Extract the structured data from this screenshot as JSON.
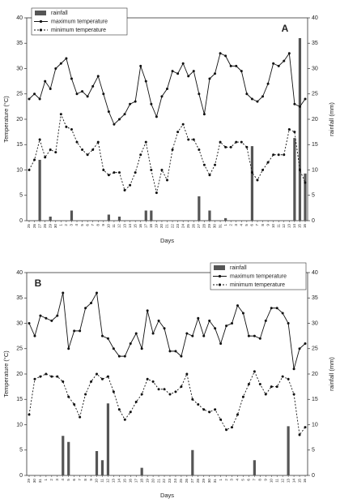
{
  "chart_data": [
    {
      "type": "combo",
      "label": "A",
      "legend": "upper left",
      "xlabel": "Days",
      "ylabel": "Temperature (°C)",
      "y2label": "rainfall (mm)",
      "categories": [
        "25",
        "26",
        "27",
        "28",
        "29",
        "30",
        "1",
        "2",
        "3",
        "4",
        "5",
        "6",
        "7",
        "8",
        "9",
        "10",
        "11",
        "12",
        "13",
        "14",
        "15",
        "16",
        "17",
        "18",
        "19",
        "20",
        "21",
        "22",
        "23",
        "24",
        "25",
        "26",
        "27",
        "28",
        "29",
        "30",
        "31",
        "1",
        "2",
        "3",
        "4",
        "5",
        "6",
        "7",
        "8",
        "9",
        "10",
        "11",
        "12",
        "13",
        "14",
        "15",
        "16"
      ],
      "ylim": [
        0,
        40
      ],
      "yticks": [
        0,
        5,
        10,
        15,
        20,
        25,
        30,
        35,
        40
      ],
      "y2lim": [
        0,
        40
      ],
      "y2ticks": [
        0,
        5,
        10,
        15,
        20,
        25,
        30,
        35,
        40
      ],
      "series": [
        {
          "name": "rainfall",
          "type": "bar",
          "axis": "y2",
          "color": "#555555",
          "values": [
            0,
            0,
            12,
            0,
            0.8,
            0,
            0,
            0,
            2,
            0,
            0,
            0,
            0,
            0,
            0,
            1.2,
            0,
            0.8,
            0,
            0,
            0,
            0,
            2,
            2,
            0,
            0,
            0,
            0,
            0,
            0,
            0,
            0,
            4.8,
            0,
            2,
            0,
            0,
            0.5,
            0,
            0,
            0,
            0,
            14.7,
            0,
            0,
            0,
            0,
            0,
            0,
            0,
            16.3,
            36,
            9.3
          ]
        },
        {
          "name": "maximum temperature",
          "type": "line",
          "color": "#111111",
          "dash": "none",
          "values": [
            24,
            25,
            24,
            27.5,
            26,
            30,
            31,
            32,
            28,
            25,
            25.5,
            24.5,
            26.5,
            28.5,
            25,
            21.5,
            19,
            20,
            21,
            23,
            23.5,
            30.5,
            27.5,
            23,
            20.5,
            24.5,
            26,
            29.5,
            29,
            31,
            28.5,
            29.5,
            25,
            21,
            28,
            29,
            33,
            32.5,
            30.5,
            30.5,
            29.5,
            25,
            24,
            23.5,
            24.5,
            27,
            31,
            30.5,
            31.5,
            33,
            23,
            22.5,
            24
          ]
        },
        {
          "name": "minimum temperature",
          "type": "line",
          "color": "#111111",
          "dash": "2,2",
          "values": [
            10,
            12,
            16,
            12.5,
            14,
            13.5,
            21,
            18.5,
            18,
            15.5,
            14,
            13,
            14,
            15.5,
            10,
            9,
            9.5,
            9.5,
            6,
            7,
            9.5,
            13,
            15.5,
            10,
            5.5,
            10,
            8,
            14,
            17.5,
            19,
            16,
            16,
            14,
            11,
            9,
            11,
            15.5,
            14.5,
            14.5,
            15.5,
            15.5,
            14.5,
            9.5,
            8,
            10,
            11.5,
            13,
            13,
            13,
            18,
            17.5,
            10,
            7.5
          ]
        }
      ]
    },
    {
      "type": "combo",
      "label": "B",
      "legend": "upper right",
      "xlabel": "Days",
      "ylabel": "Temperature (°C)",
      "y2label": "rainfall (mm)",
      "categories": [
        "29",
        "30",
        "31",
        "1",
        "2",
        "3",
        "4",
        "5",
        "6",
        "7",
        "8",
        "9",
        "10",
        "11",
        "12",
        "13",
        "14",
        "15",
        "16",
        "17",
        "18",
        "19",
        "20",
        "21",
        "22",
        "23",
        "24",
        "25",
        "26",
        "27",
        "28",
        "29",
        "30",
        "31",
        "1",
        "2",
        "3",
        "4",
        "5",
        "6",
        "7",
        "8",
        "9",
        "10",
        "11",
        "12",
        "13",
        "14",
        "15",
        "16"
      ],
      "ylim": [
        0,
        40
      ],
      "yticks": [
        0,
        5,
        10,
        15,
        20,
        25,
        30,
        35,
        40
      ],
      "y2lim": [
        0,
        40
      ],
      "y2ticks": [
        0,
        5,
        10,
        15,
        20,
        25,
        30,
        35,
        40
      ],
      "series": [
        {
          "name": "rainfall",
          "type": "bar",
          "axis": "y2",
          "color": "#555555",
          "values": [
            0,
            0,
            0,
            0,
            0,
            0,
            7.8,
            6.6,
            0,
            0,
            0,
            0,
            4.8,
            3,
            14.2,
            0,
            0,
            0,
            0,
            0,
            1.5,
            0,
            0,
            0,
            0,
            0,
            0,
            0,
            0,
            5,
            0,
            0,
            0,
            0,
            0,
            0,
            0,
            0,
            0,
            0,
            3,
            0,
            0,
            0,
            0,
            0,
            9.7,
            0,
            0,
            0
          ]
        },
        {
          "name": "maximum temperature",
          "type": "line",
          "color": "#111111",
          "dash": "none",
          "values": [
            30,
            27.5,
            31.5,
            31,
            30.5,
            31.5,
            36,
            25,
            28.5,
            28.5,
            33,
            34,
            36,
            27.5,
            27,
            25,
            23.5,
            23.5,
            26,
            28,
            25,
            32.5,
            28,
            30.5,
            29,
            24.5,
            24.5,
            23.5,
            28,
            27.5,
            31,
            27.5,
            30.5,
            29,
            26,
            29.5,
            30,
            33.5,
            32,
            27.5,
            27.5,
            27,
            30.5,
            33,
            33,
            32,
            30,
            21,
            25,
            26
          ]
        },
        {
          "name": "minimum temperature",
          "type": "line",
          "color": "#111111",
          "dash": "2,2",
          "values": [
            12,
            19,
            19.5,
            20,
            19.5,
            19.5,
            18.5,
            15.5,
            14,
            11.5,
            16,
            18.5,
            20,
            19,
            19.5,
            16.5,
            13,
            11,
            12.5,
            14.5,
            16,
            19,
            18.5,
            17,
            17,
            16,
            16.5,
            17.5,
            20,
            15,
            14,
            13,
            12.5,
            13,
            11,
            9,
            9.5,
            12,
            15.5,
            18,
            20.5,
            18,
            16,
            17.5,
            17.5,
            19.5,
            19,
            16,
            8,
            9.5
          ]
        }
      ]
    }
  ]
}
